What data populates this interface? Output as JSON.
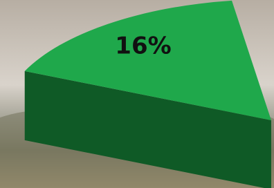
{
  "chart_data": {
    "type": "pie",
    "values": [
      16
    ],
    "value_labels": [
      "16%"
    ],
    "color": "#1fa84b"
  }
}
